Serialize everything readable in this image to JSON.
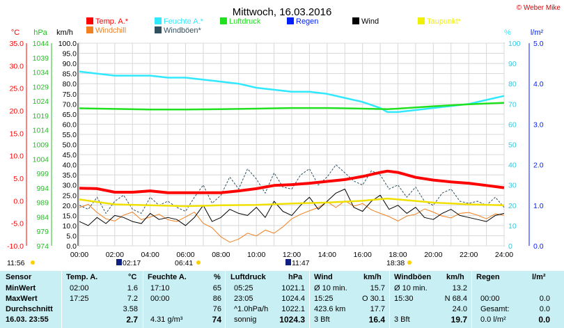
{
  "header": {
    "title": "Mittwoch, 16.03.2016",
    "credit": "© Weber Mike"
  },
  "legend": [
    {
      "label": "Temp. A.*",
      "color": "#ff0000"
    },
    {
      "label": "Feuchte A.*",
      "color": "#30e8ff"
    },
    {
      "label": "Luftdruck",
      "color": "#20e020"
    },
    {
      "label": "Regen",
      "color": "#0020ff"
    },
    {
      "label": "Wind",
      "color": "#000000"
    },
    {
      "label": "Taupunkt*",
      "color": "#f0f000"
    },
    {
      "label": "Windchill",
      "color": "#f08020"
    },
    {
      "label": "Windböen*",
      "color": "#305060"
    }
  ],
  "axis_units": {
    "temp": "°C",
    "pressure": "hPa",
    "wind": "km/h",
    "humidity": "%",
    "rain": "l/m²"
  },
  "time_marks": {
    "sunrise": "11:56",
    "moonset": "02:17",
    "sunrise2": "06:41",
    "moonrise": "11:47",
    "sunset": "18:38"
  },
  "chart_data": {
    "type": "line",
    "x_ticks": [
      "00:00",
      "02:00",
      "04:00",
      "06:00",
      "08:00",
      "10:00",
      "12:00",
      "14:00",
      "16:00",
      "18:00",
      "20:00",
      "22:00",
      "24:00"
    ],
    "temp_ticks": [
      "35.0",
      "30.0",
      "25.0",
      "20.0",
      "15.0",
      "10.0",
      "5.0",
      "0.0",
      "-5.0",
      "-10.0"
    ],
    "pressure_ticks": [
      "1044",
      "1039",
      "1034",
      "1029",
      "1024",
      "1019",
      "1014",
      "1009",
      "1004",
      "999",
      "994",
      "989",
      "984",
      "979",
      "974"
    ],
    "wind_ticks": [
      "100.0",
      "95.0",
      "90.0",
      "85.0",
      "80.0",
      "75.0",
      "70.0",
      "65.0",
      "60.0",
      "55.0",
      "50.0",
      "45.0",
      "40.0",
      "35.0",
      "30.0",
      "25.0",
      "20.0",
      "15.0",
      "10.0",
      "5.0",
      "0.0"
    ],
    "humidity_ticks": [
      "100",
      "90",
      "80",
      "70",
      "60",
      "50",
      "40",
      "30",
      "20",
      "10",
      "0"
    ],
    "rain_ticks": [
      "5.0",
      "4.0",
      "3.0",
      "2.0",
      "1.0",
      "0.0"
    ],
    "temp_ylim": [
      -10,
      35
    ],
    "pressure_ylim": [
      974,
      1044
    ],
    "wind_ylim": [
      0,
      100
    ],
    "humidity_ylim": [
      0,
      100
    ],
    "series": [
      {
        "name": "Temp. A.*",
        "axis": "temp",
        "x": [
          0,
          1,
          2,
          3,
          4,
          5,
          6,
          7,
          8,
          9,
          10,
          11,
          12,
          13,
          14,
          15,
          16,
          17,
          17.4,
          18,
          19,
          20,
          21,
          22,
          23,
          24
        ],
        "values": [
          2.8,
          2.7,
          1.9,
          1.9,
          2.2,
          1.8,
          1.8,
          1.8,
          1.8,
          2.2,
          2.7,
          3.4,
          3.6,
          3.9,
          4.3,
          4.7,
          5.4,
          6.3,
          6.6,
          6.3,
          5.2,
          4.6,
          4.2,
          3.9,
          3.4,
          2.9
        ]
      },
      {
        "name": "Feuchte A.*",
        "axis": "humidity",
        "x": [
          0,
          1,
          2,
          3,
          4,
          5,
          6,
          7,
          8,
          9,
          10,
          11,
          12,
          13,
          14,
          15,
          16,
          17,
          17.4,
          18,
          19,
          20,
          21,
          22,
          23,
          24
        ],
        "values": [
          86,
          85,
          84,
          84,
          84,
          83,
          83,
          82,
          81,
          80,
          78,
          77,
          76,
          76,
          75,
          73,
          71,
          68,
          66,
          66,
          67,
          68,
          69,
          70,
          72,
          74
        ]
      },
      {
        "name": "Luftdruck",
        "axis": "pressure",
        "x": [
          0,
          2,
          4,
          6,
          8,
          10,
          12,
          14,
          16,
          17.4,
          18,
          20,
          22,
          24
        ],
        "values": [
          1021.5,
          1021.3,
          1021.1,
          1021.1,
          1021.2,
          1021.4,
          1021.6,
          1021.6,
          1021.4,
          1021.2,
          1021.4,
          1022.2,
          1022.9,
          1023.4
        ]
      },
      {
        "name": "Taupunkt*",
        "axis": "temp",
        "x": [
          0,
          2,
          4,
          6,
          8,
          10,
          12,
          14,
          16,
          17.4,
          18,
          20,
          22,
          24
        ],
        "values": [
          0.3,
          -0.8,
          -1.0,
          -1.2,
          -1.0,
          -0.9,
          -0.6,
          -0.4,
          0.0,
          0.5,
          0.3,
          -0.4,
          -0.8,
          -1.0
        ]
      },
      {
        "name": "Windchill",
        "axis": "temp",
        "x": [
          0,
          0.5,
          1,
          1.5,
          2,
          2.5,
          3,
          3.5,
          4,
          4.5,
          5,
          5.5,
          6,
          6.5,
          7,
          7.5,
          8,
          8.5,
          9,
          9.5,
          10,
          10.5,
          11,
          11.5,
          12,
          12.5,
          13,
          13.5,
          14,
          14.5,
          15,
          15.5,
          16,
          16.5,
          17,
          17.5,
          18,
          18.5,
          19,
          19.5,
          20,
          20.5,
          21,
          21.5,
          22,
          22.5,
          23,
          23.5,
          24
        ],
        "values": [
          -1.5,
          -0.8,
          -2.6,
          -4.0,
          -4.5,
          -3.2,
          -2.5,
          -4.2,
          -3.6,
          -3.0,
          -4.2,
          -4.6,
          -3.6,
          -2.5,
          -5.0,
          -6.0,
          -8.0,
          -9.2,
          -8.5,
          -7.2,
          -7.8,
          -6.5,
          -7.2,
          -5.8,
          -4.0,
          -3.0,
          -2.2,
          -1.5,
          -0.2,
          -1.5,
          0.0,
          -1.2,
          -0.6,
          -2.0,
          -2.8,
          -3.5,
          -4.5,
          -3.4,
          -3.0,
          -1.8,
          -2.5,
          -3.4,
          -3.8,
          -2.8,
          -2.6,
          -3.2,
          -4.0,
          -2.9,
          -3.2
        ]
      },
      {
        "name": "Wind",
        "axis": "wind",
        "x": [
          0,
          0.5,
          1,
          1.5,
          2,
          2.5,
          3,
          3.5,
          4,
          4.5,
          5,
          5.5,
          6,
          6.5,
          7,
          7.5,
          8,
          8.5,
          9,
          9.5,
          10,
          10.5,
          11,
          11.5,
          12,
          12.5,
          13,
          13.5,
          14,
          14.5,
          15,
          15.5,
          16,
          16.5,
          17,
          17.5,
          18,
          18.5,
          19,
          19.5,
          20,
          20.5,
          21,
          21.5,
          22,
          22.5,
          23,
          23.5,
          24
        ],
        "values": [
          12,
          10,
          14,
          11,
          15,
          14,
          12,
          11,
          16,
          13,
          14,
          13,
          10,
          14,
          20,
          12,
          14,
          18,
          16,
          15,
          19,
          14,
          22,
          17,
          15,
          20,
          24,
          18,
          22,
          26,
          28,
          19,
          17,
          22,
          25,
          18,
          20,
          16,
          19,
          14,
          13,
          16,
          18,
          15,
          14,
          13,
          12,
          15,
          16
        ]
      },
      {
        "name": "Windböen*",
        "axis": "wind",
        "x": [
          0,
          0.5,
          1,
          1.5,
          2,
          2.5,
          3,
          3.5,
          4,
          4.5,
          5,
          5.5,
          6,
          6.5,
          7,
          7.5,
          8,
          8.5,
          9,
          9.5,
          10,
          10.5,
          11,
          11.5,
          12,
          12.5,
          13,
          13.5,
          14,
          14.5,
          15,
          15.5,
          16,
          16.5,
          17,
          17.5,
          18,
          18.5,
          19,
          19.5,
          20,
          20.5,
          21,
          21.5,
          22,
          22.5,
          23,
          23.5,
          24
        ],
        "values": [
          20,
          18,
          24,
          16,
          22,
          25,
          18,
          16,
          24,
          20,
          22,
          19,
          17,
          24,
          30,
          21,
          25,
          34,
          28,
          38,
          33,
          26,
          36,
          29,
          28,
          35,
          38,
          30,
          34,
          40,
          36,
          32,
          30,
          37,
          35,
          28,
          30,
          24,
          29,
          22,
          20,
          26,
          28,
          22,
          21,
          22,
          20,
          24,
          19
        ]
      }
    ]
  },
  "table": {
    "headers": {
      "sensor": "Sensor",
      "temp": "Temp. A.",
      "temp_unit": "°C",
      "hum": "Feuchte A.",
      "hum_unit": "%",
      "press": "Luftdruck",
      "press_unit": "hPa",
      "wind": "Wind",
      "wind_unit": "km/h",
      "gust": "Windböen",
      "gust_unit": "km/h",
      "rain": "Regen",
      "rain_unit": "l/m²"
    },
    "rows": [
      {
        "label": "MinWert",
        "t_time": "02:00",
        "t_val": "1.6",
        "h_time": "17:10",
        "h_val": "65",
        "p_time": "05:25",
        "p_val": "1021.1",
        "w_time": "Ø 10 min.",
        "w_val": "15.7",
        "g_time": "Ø 10 min.",
        "g_val": "13.2",
        "r_time": "",
        "r_val": ""
      },
      {
        "label": "MaxWert",
        "t_time": "17:25",
        "t_val": "7.2",
        "h_time": "00:00",
        "h_val": "86",
        "p_time": "23:05",
        "p_val": "1024.4",
        "w_time": "15:25",
        "w_val": "O 30.1",
        "g_time": "15:30",
        "g_val": "N 68.4",
        "r_time": "00:00",
        "r_val": "0.0"
      },
      {
        "label": "Durchschnitt",
        "t_time": "",
        "t_val": "3.58",
        "h_time": "",
        "h_val": "76",
        "p_time": "^1.0hPa/h",
        "p_val": "1022.1",
        "w_time": "423.6 km",
        "w_val": "17.7",
        "g_time": "",
        "g_val": "24.0",
        "r_time": "Gesamt:",
        "r_val": "0.0"
      },
      {
        "label": "16.03. 23:55",
        "t_time": "",
        "t_val": "2.7",
        "h_time": "4.31 g/m³",
        "h_val": "74",
        "p_time": "sonnig",
        "p_val": "1024.3",
        "w_time": "3 Bft",
        "w_val": "16.4",
        "g_time": "3 Bft",
        "g_val": "19.7",
        "r_time": "0.0 l/m²",
        "r_val": "0.0"
      }
    ]
  }
}
